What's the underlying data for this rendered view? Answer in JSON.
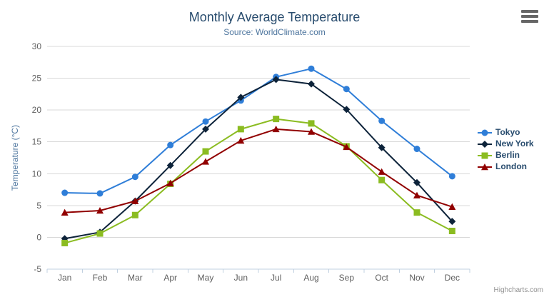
{
  "credits": {
    "label": "Highcharts.com"
  },
  "icons": {
    "context_menu": "hamburger-menu-icon"
  },
  "chart_data": {
    "type": "line",
    "title": "Monthly Average Temperature",
    "subtitle": "Source: WorldClimate.com",
    "xlabel": "",
    "ylabel": "Temperature (°C)",
    "ylim": [
      -5,
      30
    ],
    "ytick_step": 5,
    "grid": true,
    "legend_position": "right",
    "categories": [
      "Jan",
      "Feb",
      "Mar",
      "Apr",
      "May",
      "Jun",
      "Jul",
      "Aug",
      "Sep",
      "Oct",
      "Nov",
      "Dec"
    ],
    "series": [
      {
        "name": "Tokyo",
        "color": "#2f7ed8",
        "marker": "circle",
        "values": [
          7.0,
          6.9,
          9.5,
          14.5,
          18.2,
          21.5,
          25.2,
          26.5,
          23.3,
          18.3,
          13.9,
          9.6
        ]
      },
      {
        "name": "New York",
        "color": "#0d233a",
        "marker": "diamond",
        "values": [
          -0.2,
          0.8,
          5.7,
          11.3,
          17.0,
          22.0,
          24.8,
          24.1,
          20.1,
          14.1,
          8.6,
          2.5
        ]
      },
      {
        "name": "Berlin",
        "color": "#8bbc21",
        "marker": "square",
        "values": [
          -0.9,
          0.6,
          3.5,
          8.4,
          13.5,
          17.0,
          18.6,
          17.9,
          14.3,
          9.0,
          3.9,
          1.0
        ]
      },
      {
        "name": "London",
        "color": "#910000",
        "marker": "triangle",
        "values": [
          3.9,
          4.2,
          5.7,
          8.5,
          11.9,
          15.2,
          17.0,
          16.6,
          14.2,
          10.3,
          6.6,
          4.8
        ]
      }
    ],
    "axis_style": {
      "axis_line_color": "#c0d0e0",
      "grid_color": "#d8d8d8",
      "label_color": "#606060",
      "y_title_color": "#4d759e"
    }
  }
}
